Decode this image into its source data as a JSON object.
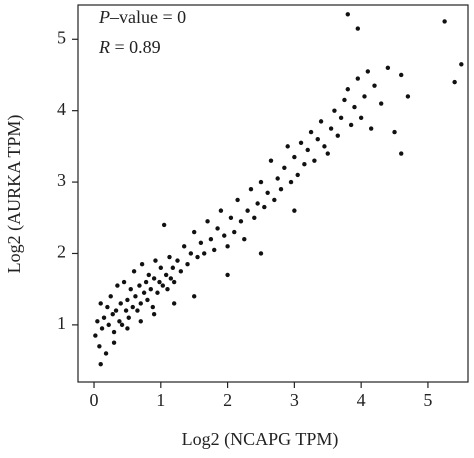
{
  "chart_data": {
    "type": "scatter",
    "annotations": [
      {
        "italic": "P",
        "text": "–value = 0"
      },
      {
        "italic": "R",
        "text": " = 0.89"
      }
    ],
    "xlabel": "Log2 (NCAPG TPM)",
    "ylabel": "Log2 (AURKA TPM)",
    "color": "#111111",
    "xlim": [
      -0.24,
      5.6
    ],
    "ylim": [
      0.2,
      5.48
    ],
    "xticks": [
      0,
      1,
      2,
      3,
      4,
      5
    ],
    "yticks": [
      1,
      2,
      3,
      4,
      5
    ],
    "x": [
      0.02,
      0.05,
      0.08,
      0.1,
      0.12,
      0.15,
      0.18,
      0.2,
      0.22,
      0.25,
      0.28,
      0.3,
      0.33,
      0.35,
      0.38,
      0.4,
      0.42,
      0.45,
      0.48,
      0.5,
      0.52,
      0.55,
      0.58,
      0.6,
      0.62,
      0.65,
      0.68,
      0.7,
      0.72,
      0.75,
      0.78,
      0.8,
      0.82,
      0.85,
      0.88,
      0.9,
      0.92,
      0.95,
      0.98,
      1.0,
      1.03,
      1.05,
      1.08,
      1.1,
      1.13,
      1.15,
      1.18,
      1.2,
      1.25,
      1.3,
      1.35,
      1.4,
      1.45,
      1.5,
      1.55,
      1.6,
      1.65,
      1.7,
      1.75,
      1.8,
      1.85,
      1.9,
      1.95,
      2.0,
      2.05,
      2.1,
      2.15,
      2.2,
      2.25,
      2.3,
      2.35,
      2.4,
      2.45,
      2.5,
      2.55,
      2.6,
      2.65,
      2.7,
      2.75,
      2.8,
      2.85,
      2.9,
      2.95,
      3.0,
      3.05,
      3.1,
      3.15,
      3.2,
      3.25,
      3.3,
      3.35,
      3.4,
      3.45,
      3.5,
      3.55,
      3.6,
      3.65,
      3.7,
      3.75,
      3.8,
      3.85,
      3.9,
      3.95,
      4.0,
      4.05,
      4.1,
      4.15,
      4.2,
      4.3,
      4.4,
      4.5,
      4.6,
      4.7,
      5.25,
      5.4,
      5.5,
      0.1,
      0.3,
      0.5,
      0.7,
      0.9,
      1.2,
      1.5,
      2.0,
      2.5,
      3.0,
      3.8,
      3.95,
      4.6
    ],
    "y": [
      0.85,
      1.05,
      0.7,
      1.3,
      0.95,
      1.1,
      0.6,
      1.25,
      1.0,
      1.4,
      1.15,
      0.9,
      1.2,
      1.55,
      1.05,
      1.3,
      1.0,
      1.6,
      1.2,
      1.35,
      1.1,
      1.5,
      1.25,
      1.75,
      1.4,
      1.2,
      1.55,
      1.3,
      1.85,
      1.45,
      1.6,
      1.35,
      1.7,
      1.5,
      1.25,
      1.65,
      1.9,
      1.45,
      1.6,
      1.8,
      1.55,
      2.4,
      1.7,
      1.5,
      1.95,
      1.65,
      1.8,
      1.6,
      1.9,
      1.75,
      2.1,
      1.85,
      2.0,
      2.3,
      1.95,
      2.15,
      2.0,
      2.45,
      2.2,
      2.05,
      2.35,
      2.6,
      2.25,
      2.1,
      2.5,
      2.3,
      2.75,
      2.45,
      2.2,
      2.6,
      2.9,
      2.5,
      2.7,
      3.0,
      2.65,
      2.85,
      3.3,
      2.75,
      3.05,
      2.9,
      3.2,
      3.5,
      3.0,
      3.35,
      3.1,
      3.55,
      3.25,
      3.45,
      3.7,
      3.3,
      3.6,
      3.85,
      3.5,
      3.4,
      3.75,
      4.0,
      3.65,
      3.9,
      4.15,
      4.3,
      3.8,
      4.05,
      4.45,
      3.9,
      4.2,
      4.55,
      3.75,
      4.35,
      4.1,
      4.6,
      3.7,
      4.5,
      4.2,
      5.25,
      4.4,
      4.65,
      0.45,
      0.75,
      0.95,
      1.05,
      1.15,
      1.3,
      1.4,
      1.7,
      2.0,
      2.6,
      5.35,
      5.15,
      3.4
    ]
  }
}
